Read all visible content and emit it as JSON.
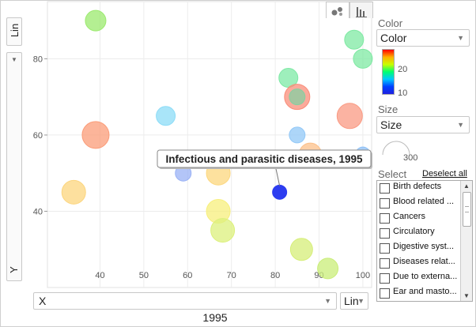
{
  "y_axis": {
    "scale_label": "Lin",
    "selector_label": "Y"
  },
  "x_axis": {
    "selector_label": "X",
    "scale_label": "Lin"
  },
  "year": "1995",
  "tooltip": {
    "text": "Infectious and parasitic diseases, 1995"
  },
  "tabs": [
    {
      "name": "bubble-chart-icon",
      "active": true
    },
    {
      "name": "bar-chart-icon",
      "active": false
    }
  ],
  "color_panel": {
    "title": "Color",
    "dropdown_value": "Color",
    "scale_ticks": [
      "20",
      "10"
    ],
    "gradient": [
      "#ff0000",
      "#ffb000",
      "#c8ff00",
      "#00ff70",
      "#00c8ff",
      "#0040ff"
    ]
  },
  "size_panel": {
    "title": "Size",
    "dropdown_value": "Size",
    "legend_value": "300"
  },
  "select_panel": {
    "title": "Select",
    "deselect_label": "Deselect all",
    "items": [
      "Birth defects",
      "Blood related ...",
      "Cancers",
      "Circulatory",
      "Digestive syst...",
      "Diseases relat...",
      "Due to externa...",
      "Ear and masto..."
    ]
  },
  "chart_data": {
    "type": "scatter",
    "x_ticks": [
      "40",
      "50",
      "60",
      "70",
      "80",
      "90",
      "100"
    ],
    "y_ticks": [
      "40",
      "60",
      "80"
    ],
    "xlim": [
      28,
      102
    ],
    "ylim": [
      20,
      95
    ],
    "grid": true,
    "points": [
      {
        "x": 39,
        "y": 90,
        "r": 13,
        "color": "#9bea6e"
      },
      {
        "x": 39,
        "y": 60,
        "r": 17,
        "color": "#fb9c78"
      },
      {
        "x": 34,
        "y": 45,
        "r": 15,
        "color": "#fcd57e"
      },
      {
        "x": 55,
        "y": 65,
        "r": 12,
        "color": "#8cdcf7"
      },
      {
        "x": 59,
        "y": 50,
        "r": 10,
        "color": "#9ab2f5"
      },
      {
        "x": 67,
        "y": 50,
        "r": 15,
        "color": "#fcd77e"
      },
      {
        "x": 67,
        "y": 40,
        "r": 15,
        "color": "#f7ef7c"
      },
      {
        "x": 68,
        "y": 35,
        "r": 15,
        "color": "#dcf07c"
      },
      {
        "x": 83,
        "y": 75,
        "r": 12,
        "color": "#7ee9a5"
      },
      {
        "x": 85,
        "y": 70,
        "r": 16,
        "color": "#f98d79"
      },
      {
        "x": 85,
        "y": 70,
        "r": 10,
        "color": "#86cfa1"
      },
      {
        "x": 85,
        "y": 60,
        "r": 10,
        "color": "#92c8f7"
      },
      {
        "x": 88,
        "y": 55,
        "r": 14,
        "color": "#fcc08a"
      },
      {
        "x": 81,
        "y": 45,
        "r": 9,
        "color": "#2d3df0"
      },
      {
        "x": 86,
        "y": 30,
        "r": 14,
        "color": "#d6ee78"
      },
      {
        "x": 92,
        "y": 25,
        "r": 13,
        "color": "#c9ed78"
      },
      {
        "x": 97,
        "y": 65,
        "r": 16,
        "color": "#fa9a83"
      },
      {
        "x": 98,
        "y": 85,
        "r": 12,
        "color": "#7fe9a3"
      },
      {
        "x": 100,
        "y": 80,
        "r": 12,
        "color": "#7fe9a3"
      },
      {
        "x": 100,
        "y": 55,
        "r": 9,
        "color": "#8dc0f7"
      }
    ],
    "highlight": {
      "x": 81,
      "y": 45
    }
  }
}
